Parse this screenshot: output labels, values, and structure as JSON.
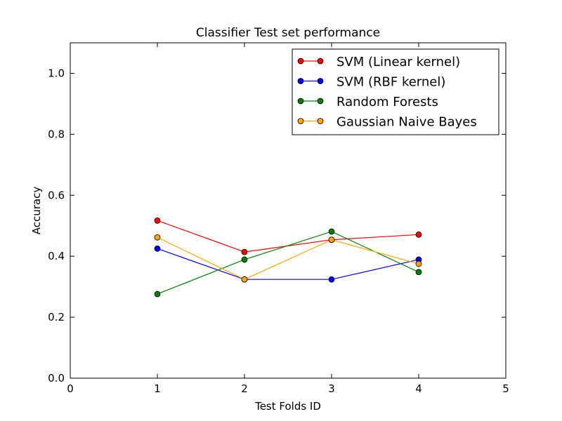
{
  "chart_data": {
    "type": "line",
    "title": "Classifier Test set performance",
    "xlabel": "Test Folds ID",
    "ylabel": "Accuracy",
    "xlim": [
      0,
      5
    ],
    "ylim": [
      0,
      1.1
    ],
    "xticks": [
      0,
      1,
      2,
      3,
      4,
      5
    ],
    "yticks": [
      0.0,
      0.2,
      0.4,
      0.6,
      0.8,
      1.0
    ],
    "xtick_labels": [
      "0",
      "1",
      "2",
      "3",
      "4",
      "5"
    ],
    "ytick_labels": [
      "0.0",
      "0.2",
      "0.4",
      "0.6",
      "0.8",
      "1.0"
    ],
    "grid": false,
    "legend_position": "top-right",
    "x": [
      1,
      2,
      3,
      4
    ],
    "series": [
      {
        "name": "SVM (Linear kernel)",
        "color": "#ff0000",
        "values": [
          0.517,
          0.414,
          0.454,
          0.471
        ]
      },
      {
        "name": "SVM (RBF kernel)",
        "color": "#0000ff",
        "values": [
          0.425,
          0.324,
          0.324,
          0.389
        ]
      },
      {
        "name": "Random Forests",
        "color": "#008000",
        "values": [
          0.276,
          0.389,
          0.481,
          0.348
        ]
      },
      {
        "name": "Gaussian Naive Bayes",
        "color": "#ffa500",
        "values": [
          0.462,
          0.324,
          0.454,
          0.375
        ]
      }
    ]
  }
}
